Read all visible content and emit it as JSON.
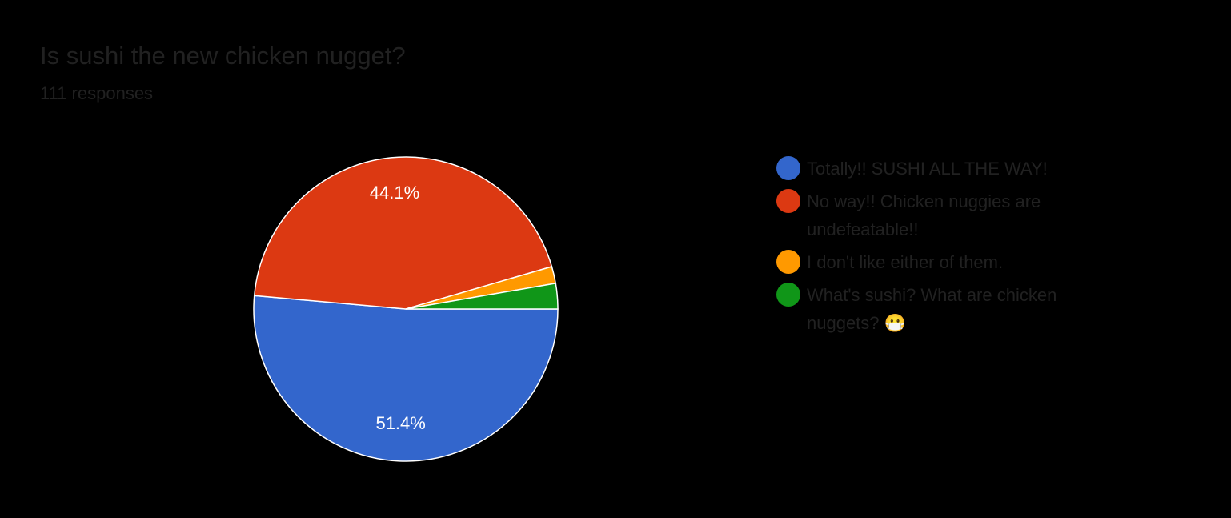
{
  "chart_data": {
    "type": "pie",
    "title": "Is sushi the new chicken nugget?",
    "subtitle": "111 responses",
    "categories": [
      "Totally!! SUSHI ALL THE WAY!",
      "No way!! Chicken nuggies are undefeatable!!",
      "I don't like either of them.",
      "What's sushi? What are chicken nuggets? 😷"
    ],
    "values": [
      51.4,
      44.1,
      1.8,
      2.7
    ],
    "value_labels": [
      "51.4%",
      "44.1%",
      null,
      null
    ],
    "colors": [
      "#3366cc",
      "#dc3912",
      "#ff9900",
      "#109618"
    ],
    "legend": "right"
  }
}
